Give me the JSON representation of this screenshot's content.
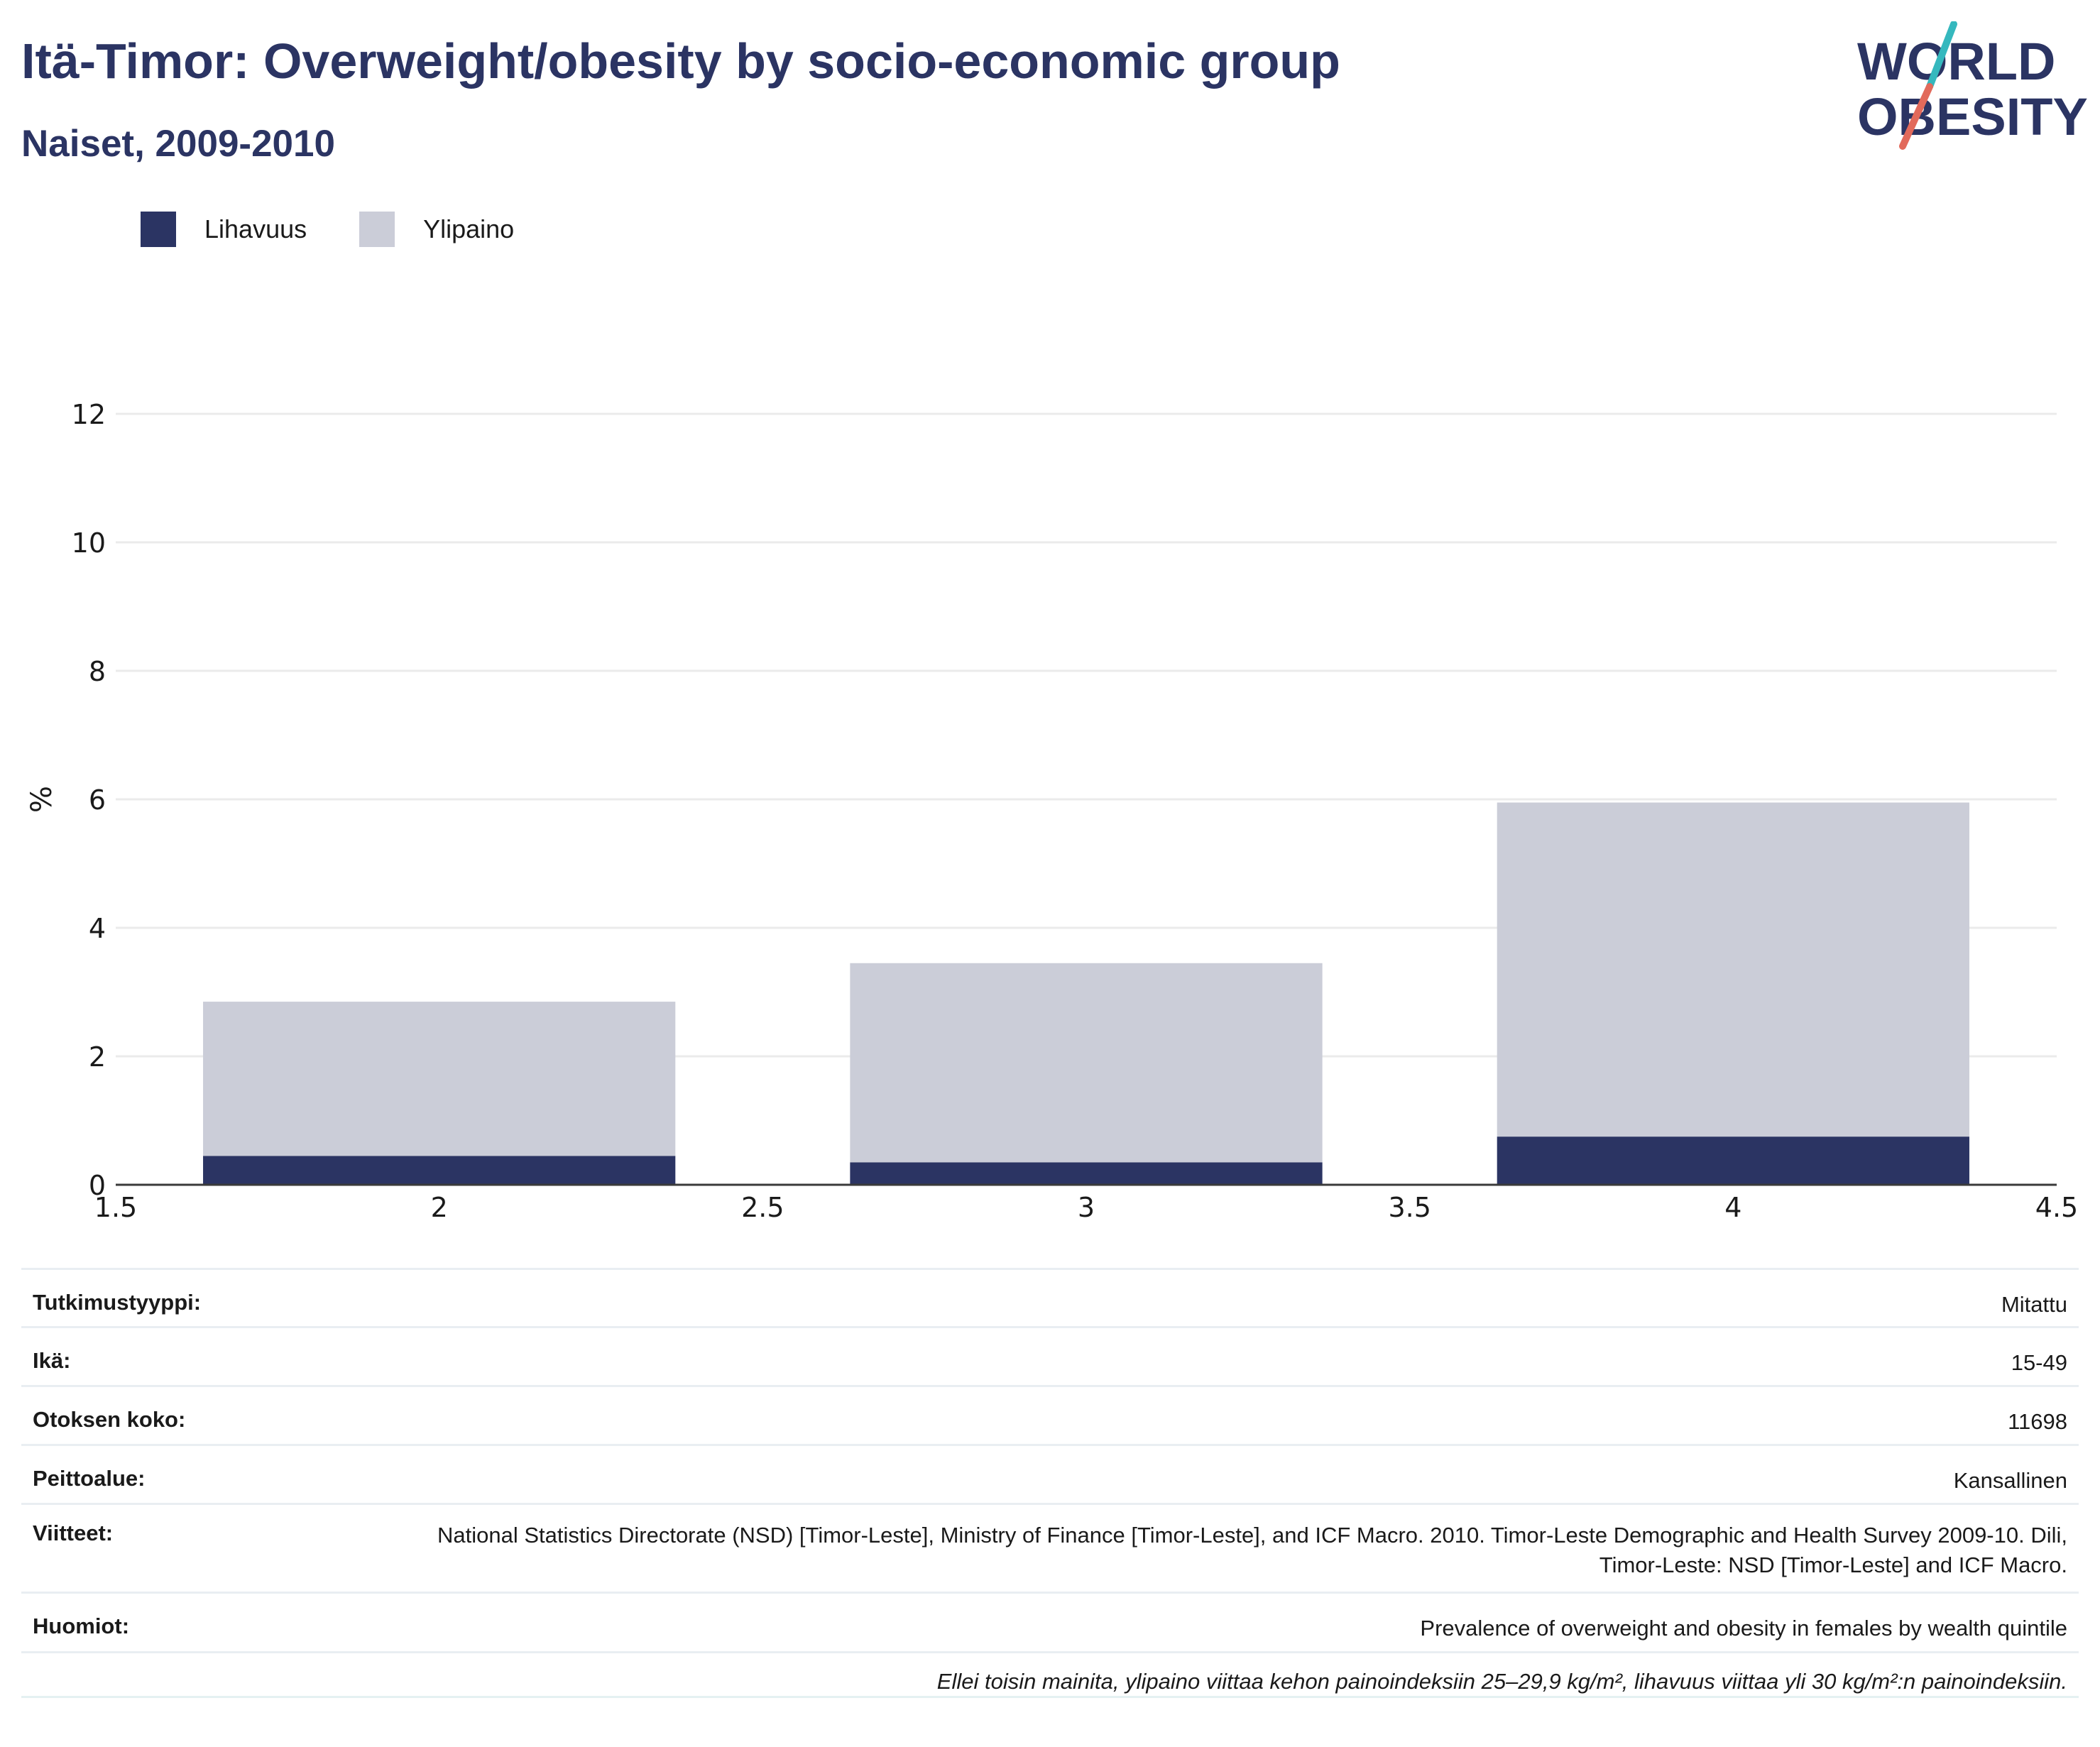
{
  "header": {
    "title": "Itä-Timor: Overweight/obesity by socio-economic group",
    "subtitle": "Naiset, 2009-2010"
  },
  "logo": {
    "line1": "WORLD",
    "line2": "OBESITY"
  },
  "colors": {
    "obesity": "#2b3463",
    "overweight": "#cbcdd8",
    "title": "#2b3463",
    "grid": "#ebebeb",
    "logo_teal": "#35b8be",
    "logo_coral": "#e26a5b"
  },
  "legend": [
    {
      "label": "Lihavuus",
      "color": "#2b3463"
    },
    {
      "label": "Ylipaino",
      "color": "#cbcdd8"
    }
  ],
  "chart_data": {
    "type": "bar",
    "stacked": true,
    "x": [
      2,
      3,
      4
    ],
    "bar_width": 0.73,
    "series": [
      {
        "name": "Lihavuus",
        "values": [
          0.45,
          0.35,
          0.75
        ]
      },
      {
        "name": "Ylipaino",
        "values": [
          2.4,
          3.1,
          5.2
        ]
      }
    ],
    "xlim": [
      1.5,
      4.5
    ],
    "ylim": [
      0,
      12
    ],
    "xticks": [
      "1.5",
      "2",
      "2.5",
      "3",
      "3.5",
      "4",
      "4.5"
    ],
    "yticks": [
      "0",
      "2",
      "4",
      "6",
      "8",
      "10",
      "12"
    ],
    "ylabel": "%",
    "xlabel": "",
    "grid": true,
    "legend_position": "top-left"
  },
  "info": [
    {
      "key": "Tutkimustyyppi:",
      "value": "Mitattu"
    },
    {
      "key": "Ikä:",
      "value": "15-49"
    },
    {
      "key": "Otoksen koko:",
      "value": "11698"
    },
    {
      "key": "Peittoalue:",
      "value": "Kansallinen"
    },
    {
      "key": "Viitteet:",
      "value": "National Statistics Directorate (NSD) [Timor-Leste], Ministry of Finance [Timor-Leste], and ICF Macro. 2010. Timor-Leste Demographic and Health Survey 2009-10. Dili, Timor-Leste: NSD [Timor-Leste] and ICF Macro."
    },
    {
      "key": "Huomiot:",
      "value": "Prevalence of overweight and obesity in females by wealth quintile"
    }
  ],
  "footnote": "Ellei toisin mainita, ylipaino viittaa kehon painoindeksiin 25–29,9 kg/m², lihavuus viittaa yli 30 kg/m²:n painoindeksiin."
}
